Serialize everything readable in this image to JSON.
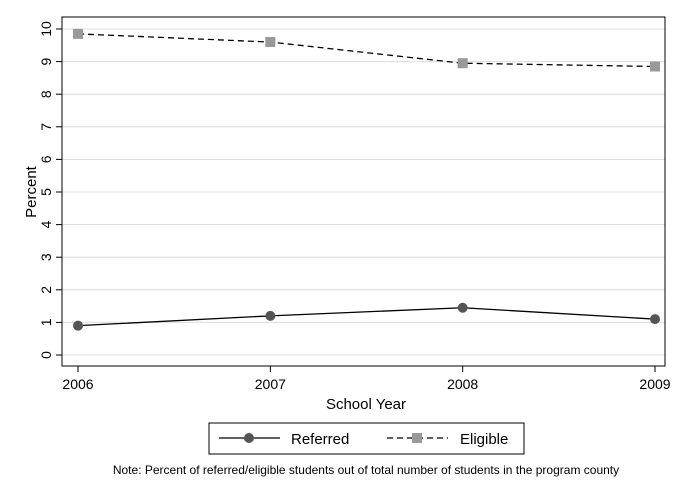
{
  "chart_data": {
    "type": "line",
    "title": "",
    "xlabel": "School Year",
    "ylabel": "Percent",
    "x": [
      2006,
      2007,
      2008,
      2009
    ],
    "x_tick_labels": [
      "2006",
      "2007",
      "2008",
      "2009"
    ],
    "xlim": [
      2006,
      2009
    ],
    "ylim": [
      0,
      10
    ],
    "y_ticks": [
      0,
      1,
      2,
      3,
      4,
      5,
      6,
      7,
      8,
      9,
      10
    ],
    "y_tick_labels": [
      "0",
      "1",
      "2",
      "3",
      "4",
      "5",
      "6",
      "7",
      "8",
      "9",
      "10"
    ],
    "grid": true,
    "legend_position": "bottom",
    "series": [
      {
        "name": "Referred",
        "values": [
          0.9,
          1.2,
          1.45,
          1.1
        ],
        "color": "#000000",
        "marker": "circle",
        "marker_color": "#555555",
        "line_style": "solid"
      },
      {
        "name": "Eligible",
        "values": [
          9.85,
          9.6,
          8.95,
          8.85
        ],
        "color": "#000000",
        "marker": "square",
        "marker_color": "#999999",
        "line_style": "dashed"
      }
    ],
    "note": "Note: Percent of referred/eligible students out of total number of students in the program county"
  }
}
